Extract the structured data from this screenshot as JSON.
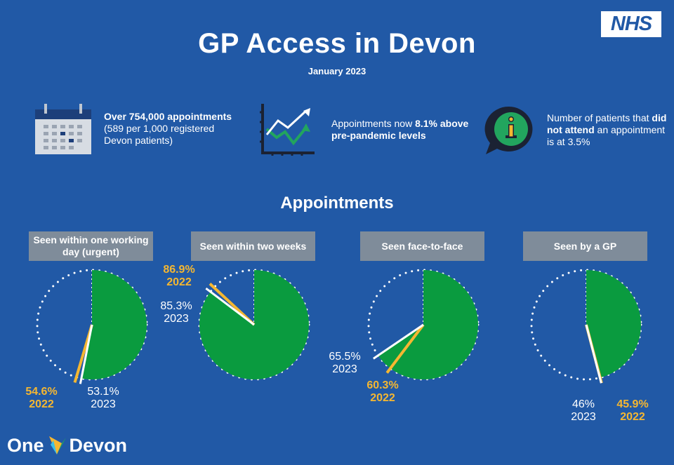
{
  "header": {
    "title": "GP Access in Devon",
    "subtitle": "January 2023",
    "logo_text": "NHS"
  },
  "stats": {
    "appointments": {
      "bold": "Over 754,000 appointments",
      "rest": "(589 per 1,000 registered Devon patients)",
      "icon": "calendar-icon"
    },
    "pandemic": {
      "prefix": "Appointments now ",
      "bold": "8.1% above pre-pandemic levels",
      "icon": "trend-chart-icon"
    },
    "dna": {
      "prefix": "Number of patients that ",
      "bold": "did not attend",
      "suffix": " an appointment is at 3.5%",
      "icon": "info-bubble-icon"
    }
  },
  "section_title": "Appointments",
  "colors": {
    "background": "#2159a6",
    "pie_fill": "#0a9b3f",
    "year_2022": "#f5b731",
    "year_2023": "#ffffff",
    "label_box": "#7f8c9a"
  },
  "charts": [
    {
      "label": "Seen within one working day (urgent)",
      "pct_2023": 53.1,
      "pct_2022": 54.6,
      "text_2023": "53.1%",
      "year_2023": "2023",
      "text_2022": "54.6%",
      "year_2022": "2022"
    },
    {
      "label": "Seen within two weeks",
      "pct_2023": 85.3,
      "pct_2022": 86.9,
      "text_2023": "85.3%",
      "year_2023": "2023",
      "text_2022": "86.9%",
      "year_2022": "2022"
    },
    {
      "label": "Seen face-to-face",
      "pct_2023": 65.5,
      "pct_2022": 60.3,
      "text_2023": "65.5%",
      "year_2023": "2023",
      "text_2022": "60.3%",
      "year_2022": "2022"
    },
    {
      "label": "Seen by a GP",
      "pct_2023": 46,
      "pct_2022": 45.9,
      "text_2023": "46%",
      "year_2023": "2023",
      "text_2022": "45.9%",
      "year_2022": "2022"
    }
  ],
  "footer": {
    "brand_left": "One",
    "brand_right": "Devon"
  }
}
